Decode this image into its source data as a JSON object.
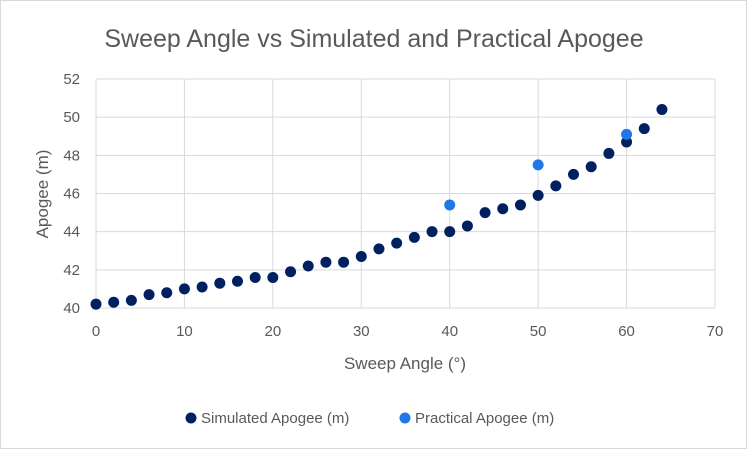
{
  "chart_data": {
    "type": "scatter",
    "title": "Sweep Angle vs Simulated and Practical Apogee",
    "xlabel": "Sweep Angle (°)",
    "ylabel": "Apogee (m)",
    "xlim": [
      0,
      70
    ],
    "ylim": [
      40,
      52
    ],
    "x_ticks": [
      "0",
      "10",
      "20",
      "30",
      "40",
      "50",
      "60",
      "70"
    ],
    "y_ticks": [
      "40",
      "42",
      "44",
      "46",
      "48",
      "50",
      "52"
    ],
    "grid": true,
    "legend_position": "bottom",
    "series": [
      {
        "name": "Simulated Apogee (m)",
        "color": "#002060",
        "points": [
          [
            0,
            40.2
          ],
          [
            2,
            40.3
          ],
          [
            4,
            40.4
          ],
          [
            6,
            40.7
          ],
          [
            8,
            40.8
          ],
          [
            10,
            41.0
          ],
          [
            12,
            41.1
          ],
          [
            14,
            41.3
          ],
          [
            16,
            41.4
          ],
          [
            18,
            41.6
          ],
          [
            20,
            41.6
          ],
          [
            22,
            41.9
          ],
          [
            24,
            42.2
          ],
          [
            26,
            42.4
          ],
          [
            28,
            42.4
          ],
          [
            30,
            42.7
          ],
          [
            32,
            43.1
          ],
          [
            34,
            43.4
          ],
          [
            36,
            43.7
          ],
          [
            38,
            44.0
          ],
          [
            40,
            44.0
          ],
          [
            42,
            44.3
          ],
          [
            44,
            45.0
          ],
          [
            46,
            45.2
          ],
          [
            48,
            45.4
          ],
          [
            50,
            45.9
          ],
          [
            52,
            46.4
          ],
          [
            54,
            47.0
          ],
          [
            56,
            47.4
          ],
          [
            58,
            48.1
          ],
          [
            60,
            48.7
          ],
          [
            62,
            49.4
          ],
          [
            64,
            50.4
          ]
        ]
      },
      {
        "name": "Practical Apogee (m)",
        "color": "#1F78E6",
        "points": [
          [
            40,
            45.4
          ],
          [
            50,
            47.5
          ],
          [
            60,
            49.1
          ]
        ]
      }
    ]
  }
}
